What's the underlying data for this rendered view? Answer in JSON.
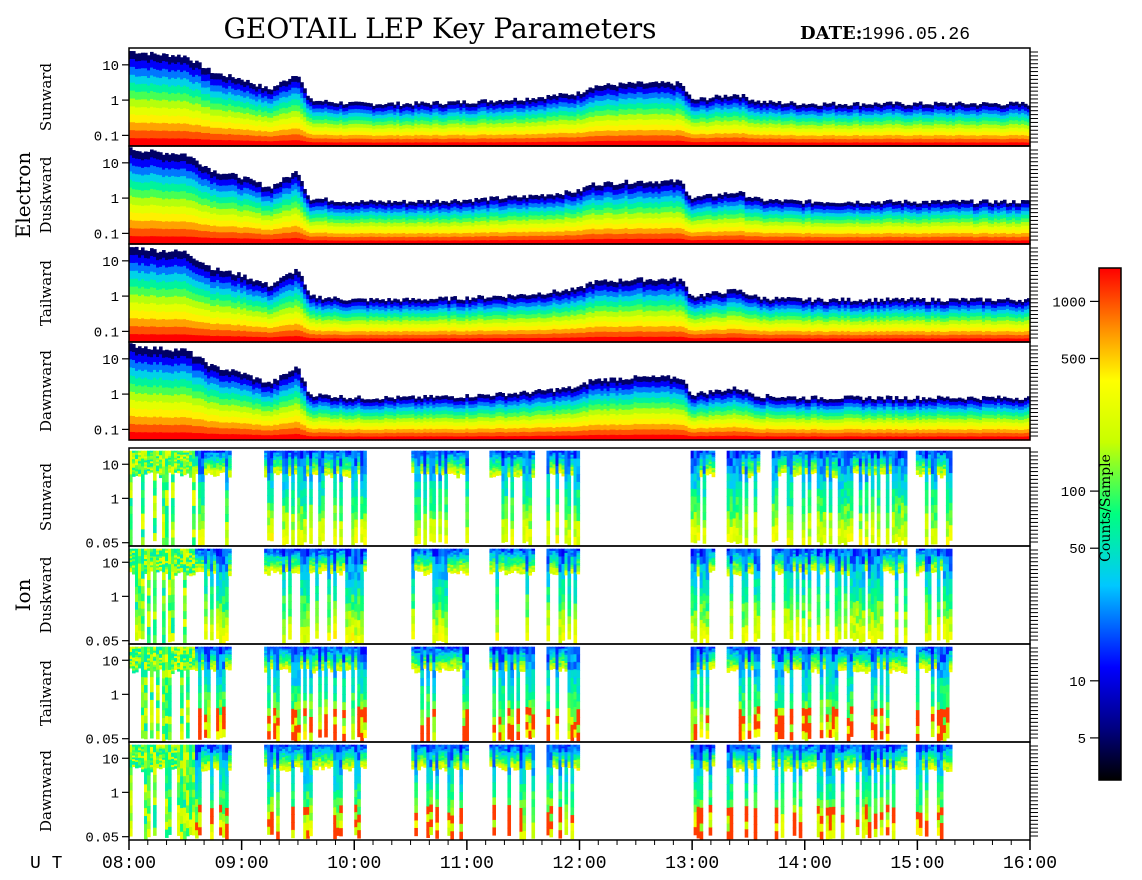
{
  "chart_data": {
    "type": "heatmap",
    "title": "GEOTAIL LEP Key Parameters",
    "date_label": "DATE:",
    "date_value": "1996.05.26",
    "time_axis": {
      "label": "U T",
      "ticks": [
        "08:00",
        "09:00",
        "10:00",
        "11:00",
        "12:00",
        "13:00",
        "14:00",
        "15:00",
        "16:00"
      ],
      "range_hours": [
        8,
        16
      ]
    },
    "groups": [
      {
        "name": "Electron",
        "panels": [
          {
            "direction": "Sunward",
            "y_ticks": [
              "10",
              "1",
              "0.1"
            ],
            "y_log_range": [
              0.05,
              30
            ]
          },
          {
            "direction": "Duskward",
            "y_ticks": [
              "10",
              "1",
              "0.1"
            ],
            "y_log_range": [
              0.05,
              30
            ]
          },
          {
            "direction": "Tailward",
            "y_ticks": [
              "10",
              "1",
              "0.1"
            ],
            "y_log_range": [
              0.05,
              30
            ]
          },
          {
            "direction": "Dawnward",
            "y_ticks": [
              "10",
              "1",
              "0.1"
            ],
            "y_log_range": [
              0.05,
              30
            ]
          }
        ]
      },
      {
        "name": "Ion",
        "panels": [
          {
            "direction": "Sunward",
            "y_ticks": [
              "10",
              "1",
              "0.05"
            ],
            "y_log_range": [
              0.04,
              30
            ]
          },
          {
            "direction": "Duskward",
            "y_ticks": [
              "10",
              "1",
              "0.05"
            ],
            "y_log_range": [
              0.04,
              30
            ]
          },
          {
            "direction": "Tailward",
            "y_ticks": [
              "10",
              "1",
              "0.05"
            ],
            "y_log_range": [
              0.04,
              30
            ]
          },
          {
            "direction": "Dawnward",
            "y_ticks": [
              "10",
              "1",
              "0.05"
            ],
            "y_log_range": [
              0.04,
              30
            ]
          }
        ]
      }
    ],
    "colorbar": {
      "label": "Counts/Sample",
      "scale": "log",
      "range": [
        3,
        1500
      ],
      "ticks": [
        "1000",
        "500",
        "100",
        "50",
        "10",
        "5"
      ],
      "tick_values": [
        1000,
        500,
        100,
        50,
        10,
        5
      ]
    },
    "electron_upper_energy_profile": [
      [
        8.0,
        25
      ],
      [
        8.25,
        20
      ],
      [
        8.5,
        18
      ],
      [
        8.75,
        6
      ],
      [
        9.0,
        4
      ],
      [
        9.25,
        2
      ],
      [
        9.5,
        6
      ],
      [
        9.6,
        1
      ],
      [
        10.0,
        0.8
      ],
      [
        10.5,
        0.8
      ],
      [
        11.0,
        0.9
      ],
      [
        11.5,
        1.1
      ],
      [
        12.0,
        1.6
      ],
      [
        12.1,
        2.5
      ],
      [
        12.5,
        3
      ],
      [
        12.9,
        3
      ],
      [
        13.0,
        1
      ],
      [
        13.4,
        1.5
      ],
      [
        13.6,
        0.9
      ],
      [
        14.0,
        0.8
      ],
      [
        14.5,
        0.8
      ],
      [
        15.0,
        0.8
      ],
      [
        15.5,
        0.8
      ],
      [
        16.0,
        0.8
      ]
    ],
    "ion_active_intervals_hours": [
      [
        8.0,
        8.6
      ],
      [
        8.6,
        8.9
      ],
      [
        9.2,
        9.8
      ],
      [
        9.8,
        10.1
      ],
      [
        10.5,
        11.0
      ],
      [
        11.2,
        11.6
      ],
      [
        11.7,
        12.0
      ],
      [
        13.0,
        13.2
      ],
      [
        13.3,
        13.6
      ],
      [
        13.7,
        14.5
      ],
      [
        14.5,
        14.9
      ],
      [
        15.0,
        15.3
      ]
    ]
  }
}
